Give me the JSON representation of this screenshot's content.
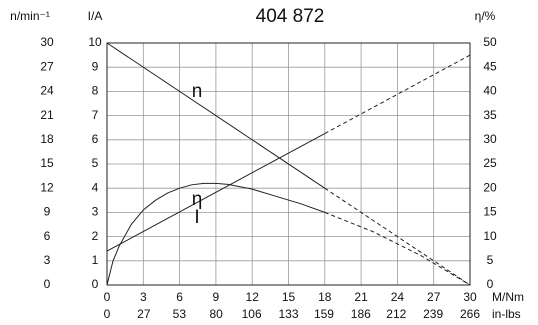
{
  "chart_data": {
    "type": "line",
    "title": "404 872",
    "xlim": [
      0,
      30
    ],
    "xticks": [
      0,
      3,
      6,
      9,
      12,
      15,
      18,
      21,
      24,
      27,
      30
    ],
    "x_label": "M/Nm",
    "x2lim": [
      0,
      266
    ],
    "x2ticks": [
      0,
      27,
      53,
      80,
      106,
      133,
      159,
      186,
      212,
      239,
      266
    ],
    "x2_label": "in-lbs",
    "axes": [
      {
        "label": "n/min⁻¹",
        "lim": [
          0,
          30
        ],
        "ticks": [
          0,
          3,
          6,
          9,
          12,
          15,
          18,
          21,
          24,
          27,
          30
        ]
      },
      {
        "label": "I/A",
        "lim": [
          0,
          10
        ],
        "ticks": [
          0,
          1,
          2,
          3,
          4,
          5,
          6,
          7,
          8,
          9,
          10
        ]
      },
      {
        "label": "η/%",
        "lim": [
          0,
          50
        ],
        "ticks": [
          0,
          5,
          10,
          15,
          20,
          25,
          30,
          35,
          40,
          45,
          50
        ]
      }
    ],
    "grid": true,
    "color": "#222",
    "dashed_from_x": 18,
    "series": [
      {
        "name": "n",
        "axis": 0,
        "x": [
          0,
          18,
          30
        ],
        "values": [
          30,
          12,
          0
        ]
      },
      {
        "name": "I",
        "axis": 1,
        "x": [
          0,
          18,
          30
        ],
        "values": [
          1.4,
          6.26,
          9.5
        ]
      },
      {
        "name": "η",
        "axis": 2,
        "x": [
          0,
          0.5,
          1,
          2,
          3,
          4,
          5,
          6,
          7,
          8,
          9,
          10,
          12,
          14,
          16,
          18,
          20,
          22,
          24,
          26,
          28,
          30
        ],
        "values": [
          0,
          5,
          8,
          12.5,
          15.5,
          17.5,
          19,
          20,
          20.7,
          21,
          21,
          20.8,
          19.8,
          18.3,
          16.8,
          15,
          13,
          11,
          8.5,
          6,
          3,
          0
        ]
      }
    ]
  }
}
